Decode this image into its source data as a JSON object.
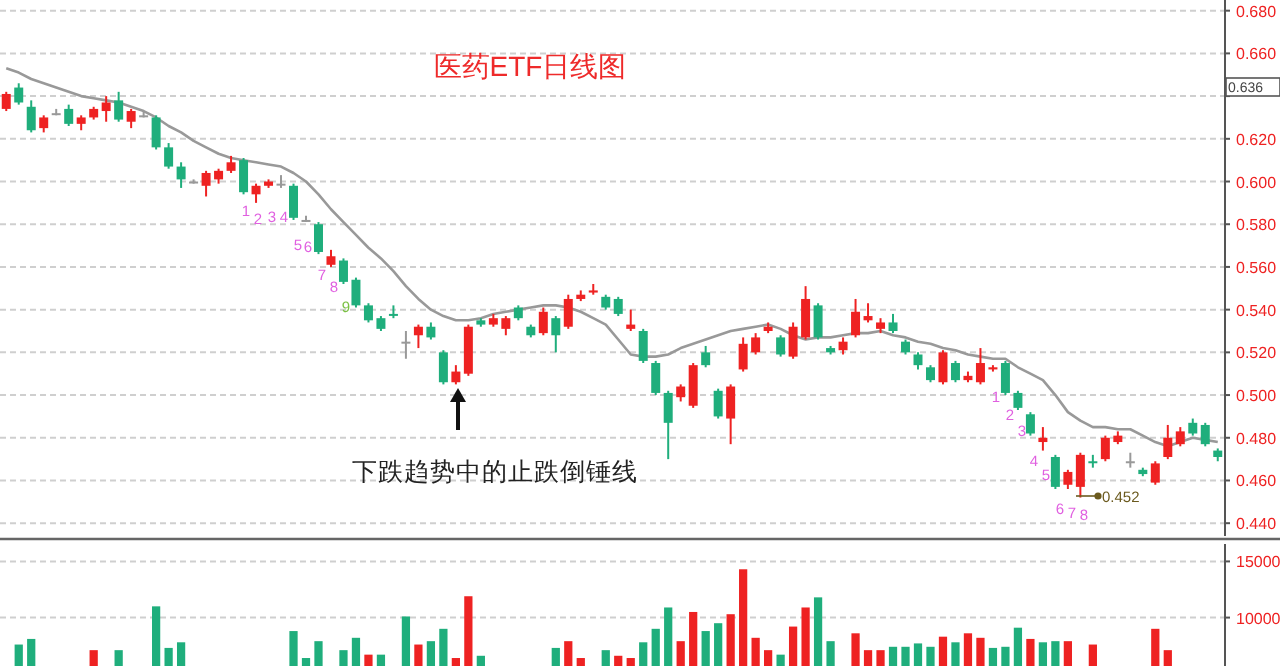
{
  "chart_data": [
    {
      "type": "candlestick",
      "title": "医药ETF日线图",
      "tick_labels": "y",
      "grid": "y",
      "categories": [
        null,
        null,
        null,
        null,
        null,
        null,
        null,
        null,
        null,
        null,
        null,
        null,
        null,
        null,
        null,
        null,
        null,
        null,
        null,
        null,
        null,
        null,
        null,
        null,
        null,
        null,
        null,
        null,
        null,
        null,
        null,
        null,
        null,
        null,
        null,
        null,
        null,
        null,
        null,
        null,
        null,
        null,
        null,
        null,
        null,
        null,
        null,
        null,
        null,
        null,
        null,
        null,
        null,
        null,
        null,
        null,
        null,
        null,
        null,
        null,
        null,
        null,
        null,
        null,
        null,
        null,
        null,
        null,
        null,
        null,
        null,
        null,
        null,
        null,
        null,
        null,
        null,
        null,
        null,
        null,
        null,
        null,
        null,
        null,
        null,
        null,
        null,
        null,
        null,
        null,
        null,
        null,
        null,
        null,
        null,
        null,
        null,
        null
      ],
      "ohlc": [
        [
          0.634,
          0.642,
          0.633,
          0.641
        ],
        [
          0.644,
          0.646,
          0.636,
          0.637
        ],
        [
          0.635,
          0.638,
          0.623,
          0.624
        ],
        [
          0.625,
          0.631,
          0.623,
          0.63
        ],
        [
          0.632,
          0.634,
          0.631,
          0.632
        ],
        [
          0.634,
          0.636,
          0.626,
          0.627
        ],
        [
          0.627,
          0.631,
          0.624,
          0.63
        ],
        [
          0.63,
          0.635,
          0.629,
          0.634
        ],
        [
          0.633,
          0.64,
          0.628,
          0.637
        ],
        [
          0.638,
          0.642,
          0.628,
          0.629
        ],
        [
          0.628,
          0.634,
          0.625,
          0.633
        ],
        [
          0.631,
          0.633,
          0.63,
          0.631
        ],
        [
          0.63,
          0.631,
          0.615,
          0.616
        ],
        [
          0.616,
          0.618,
          0.606,
          0.607
        ],
        [
          0.607,
          0.609,
          0.597,
          0.601
        ],
        [
          0.6,
          0.601,
          0.599,
          0.6
        ],
        [
          0.598,
          0.605,
          0.593,
          0.604
        ],
        [
          0.601,
          0.606,
          0.599,
          0.605
        ],
        [
          0.605,
          0.612,
          0.604,
          0.609
        ],
        [
          0.61,
          0.611,
          0.594,
          0.595
        ],
        [
          0.594,
          0.599,
          0.59,
          0.598
        ],
        [
          0.598,
          0.601,
          0.597,
          0.6
        ],
        [
          0.599,
          0.603,
          0.597,
          0.599
        ],
        [
          0.598,
          0.599,
          0.582,
          0.583
        ],
        [
          0.582,
          0.584,
          0.581,
          0.582
        ],
        [
          0.58,
          0.581,
          0.566,
          0.567
        ],
        [
          0.561,
          0.568,
          0.56,
          0.565
        ],
        [
          0.563,
          0.564,
          0.552,
          0.553
        ],
        [
          0.554,
          0.555,
          0.541,
          0.542
        ],
        [
          0.542,
          0.543,
          0.534,
          0.535
        ],
        [
          0.536,
          0.537,
          0.53,
          0.531
        ],
        [
          0.538,
          0.542,
          0.536,
          0.538
        ],
        [
          0.525,
          0.53,
          0.517,
          0.525
        ],
        [
          0.528,
          0.533,
          0.522,
          0.532
        ],
        [
          0.532,
          0.534,
          0.526,
          0.527
        ],
        [
          0.52,
          0.521,
          0.505,
          0.506
        ],
        [
          0.506,
          0.514,
          0.505,
          0.511
        ],
        [
          0.51,
          0.533,
          0.509,
          0.532
        ],
        [
          0.535,
          0.536,
          0.532,
          0.533
        ],
        [
          0.533,
          0.538,
          0.532,
          0.536
        ],
        [
          0.531,
          0.537,
          0.528,
          0.536
        ],
        [
          0.541,
          0.542,
          0.535,
          0.536
        ],
        [
          0.532,
          0.533,
          0.527,
          0.528
        ],
        [
          0.529,
          0.541,
          0.528,
          0.539
        ],
        [
          0.536,
          0.537,
          0.52,
          0.528
        ],
        [
          0.532,
          0.547,
          0.531,
          0.545
        ],
        [
          0.545,
          0.549,
          0.544,
          0.547
        ],
        [
          0.548,
          0.552,
          0.547,
          0.549
        ],
        [
          0.546,
          0.547,
          0.54,
          0.541
        ],
        [
          0.545,
          0.546,
          0.537,
          0.538
        ],
        [
          0.531,
          0.54,
          0.53,
          0.533
        ],
        [
          0.53,
          0.531,
          0.515,
          0.516
        ],
        [
          0.515,
          0.516,
          0.5,
          0.501
        ],
        [
          0.501,
          0.502,
          0.47,
          0.487
        ],
        [
          0.499,
          0.505,
          0.497,
          0.504
        ],
        [
          0.495,
          0.515,
          0.494,
          0.514
        ],
        [
          0.52,
          0.523,
          0.513,
          0.514
        ],
        [
          0.502,
          0.503,
          0.489,
          0.49
        ],
        [
          0.489,
          0.505,
          0.477,
          0.504
        ],
        [
          0.512,
          0.527,
          0.511,
          0.524
        ],
        [
          0.52,
          0.529,
          0.519,
          0.527
        ],
        [
          0.53,
          0.534,
          0.529,
          0.532
        ],
        [
          0.527,
          0.528,
          0.518,
          0.519
        ],
        [
          0.518,
          0.534,
          0.517,
          0.532
        ],
        [
          0.527,
          0.551,
          0.526,
          0.545
        ],
        [
          0.542,
          0.543,
          0.526,
          0.527
        ],
        [
          0.522,
          0.523,
          0.519,
          0.52
        ],
        [
          0.521,
          0.527,
          0.519,
          0.525
        ],
        [
          0.528,
          0.545,
          0.527,
          0.539
        ],
        [
          0.535,
          0.543,
          0.534,
          0.537
        ],
        [
          0.531,
          0.536,
          0.529,
          0.534
        ],
        [
          0.534,
          0.538,
          0.529,
          0.53
        ],
        [
          0.525,
          0.526,
          0.519,
          0.52
        ],
        [
          0.519,
          0.52,
          0.512,
          0.514
        ],
        [
          0.513,
          0.514,
          0.506,
          0.507
        ],
        [
          0.506,
          0.521,
          0.505,
          0.52
        ],
        [
          0.515,
          0.516,
          0.506,
          0.507
        ],
        [
          0.507,
          0.511,
          0.506,
          0.509
        ],
        [
          0.506,
          0.522,
          0.505,
          0.515
        ],
        [
          0.512,
          0.514,
          0.511,
          0.513
        ],
        [
          0.515,
          0.516,
          0.5,
          0.501
        ],
        [
          0.501,
          0.502,
          0.493,
          0.494
        ],
        [
          0.491,
          0.492,
          0.481,
          0.482
        ],
        [
          0.478,
          0.485,
          0.474,
          0.48
        ],
        [
          0.471,
          0.472,
          0.456,
          0.457
        ],
        [
          0.458,
          0.465,
          0.456,
          0.464
        ],
        [
          0.457,
          0.473,
          0.452,
          0.472
        ],
        [
          0.469,
          0.472,
          0.466,
          0.469
        ],
        [
          0.47,
          0.481,
          0.469,
          0.48
        ],
        [
          0.478,
          0.483,
          0.477,
          0.481
        ],
        [
          0.469,
          0.473,
          0.466,
          0.469
        ],
        [
          0.465,
          0.466,
          0.462,
          0.463
        ],
        [
          0.459,
          0.469,
          0.458,
          0.468
        ],
        [
          0.471,
          0.486,
          0.47,
          0.48
        ],
        [
          0.477,
          0.485,
          0.476,
          0.483
        ],
        [
          0.487,
          0.489,
          0.481,
          0.482
        ],
        [
          0.486,
          0.487,
          0.476,
          0.477
        ],
        [
          0.474,
          0.475,
          0.469,
          0.471
        ]
      ],
      "colors": [
        "#ee2222",
        "#1fae7c",
        "#1fae7c",
        "#ee2222",
        "#999999",
        "#1fae7c",
        "#ee2222",
        "#ee2222",
        "#ee2222",
        "#1fae7c",
        "#ee2222",
        "#999999",
        "#1fae7c",
        "#1fae7c",
        "#1fae7c",
        "#999999",
        "#ee2222",
        "#ee2222",
        "#ee2222",
        "#1fae7c",
        "#ee2222",
        "#ee2222",
        "#999999",
        "#1fae7c",
        "#999999",
        "#1fae7c",
        "#ee2222",
        "#1fae7c",
        "#1fae7c",
        "#1fae7c",
        "#1fae7c",
        "#1fae7c",
        "#999999",
        "#ee2222",
        "#1fae7c",
        "#1fae7c",
        "#ee2222",
        "#ee2222",
        "#1fae7c",
        "#ee2222",
        "#ee2222",
        "#1fae7c",
        "#1fae7c",
        "#ee2222",
        "#1fae7c",
        "#ee2222",
        "#ee2222",
        "#ee2222",
        "#1fae7c",
        "#1fae7c",
        "#ee2222",
        "#1fae7c",
        "#1fae7c",
        "#1fae7c",
        "#ee2222",
        "#ee2222",
        "#1fae7c",
        "#1fae7c",
        "#ee2222",
        "#ee2222",
        "#ee2222",
        "#ee2222",
        "#1fae7c",
        "#ee2222",
        "#ee2222",
        "#1fae7c",
        "#1fae7c",
        "#ee2222",
        "#ee2222",
        "#ee2222",
        "#ee2222",
        "#1fae7c",
        "#1fae7c",
        "#1fae7c",
        "#1fae7c",
        "#ee2222",
        "#1fae7c",
        "#ee2222",
        "#ee2222",
        "#ee2222",
        "#1fae7c",
        "#1fae7c",
        "#1fae7c",
        "#ee2222",
        "#1fae7c",
        "#ee2222",
        "#ee2222",
        "#1fae7c",
        "#ee2222",
        "#ee2222",
        "#999999",
        "#1fae7c",
        "#ee2222",
        "#ee2222",
        "#ee2222",
        "#1fae7c",
        "#1fae7c",
        "#1fae7c"
      ],
      "series": [
        {
          "type": "line",
          "color": "#999999",
          "values": [
            0.653,
            0.651,
            0.648,
            0.646,
            0.644,
            0.642,
            0.64,
            0.639,
            0.638,
            0.637,
            0.635,
            0.633,
            0.63,
            0.626,
            0.623,
            0.619,
            0.616,
            0.613,
            0.611,
            0.61,
            0.609,
            0.608,
            0.607,
            0.604,
            0.6,
            0.594,
            0.587,
            0.581,
            0.575,
            0.569,
            0.564,
            0.558,
            0.551,
            0.545,
            0.54,
            0.537,
            0.535,
            0.535,
            0.536,
            0.538,
            0.539,
            0.54,
            0.541,
            0.542,
            0.542,
            0.541,
            0.539,
            0.536,
            0.533,
            0.526,
            0.519,
            0.518,
            0.518,
            0.519,
            0.522,
            0.524,
            0.526,
            0.528,
            0.53,
            0.531,
            0.532,
            0.533,
            0.531,
            0.528,
            0.526,
            0.527,
            0.527,
            0.528,
            0.529,
            0.529,
            0.53,
            0.528,
            0.527,
            0.525,
            0.524,
            0.522,
            0.521,
            0.519,
            0.518,
            0.517,
            0.517,
            0.513,
            0.51,
            0.507,
            0.5,
            0.492,
            0.488,
            0.485,
            0.485,
            0.484,
            0.484,
            0.481,
            0.478,
            0.476,
            0.478,
            0.48,
            0.479,
            0.478
          ]
        }
      ],
      "ylim": [
        0.434,
        0.685
      ],
      "yticks": [
        {
          "value": 0.44,
          "label": "0.440"
        },
        {
          "value": 0.46,
          "label": "0.460"
        },
        {
          "value": 0.48,
          "label": "0.480"
        },
        {
          "value": 0.5,
          "label": "0.500"
        },
        {
          "value": 0.52,
          "label": "0.520"
        },
        {
          "value": 0.54,
          "label": "0.540"
        },
        {
          "value": 0.56,
          "label": "0.560"
        },
        {
          "value": 0.58,
          "label": "0.580"
        },
        {
          "value": 0.6,
          "label": "0.600"
        },
        {
          "value": 0.62,
          "label": "0.620"
        },
        {
          "value": 0.64,
          "label": null
        },
        {
          "value": 0.66,
          "label": "0.660"
        },
        {
          "value": 0.68,
          "label": "0.680"
        }
      ],
      "annotations": [
        "0.636",
        "下跌趋势中的止跌倒锤线",
        "1",
        "2",
        "3",
        "4",
        "5",
        "6",
        "7",
        "8",
        "9",
        "1",
        "2",
        "3",
        "4",
        "5",
        "6",
        "7",
        "8",
        "0.452"
      ]
    },
    {
      "type": "bar",
      "tick_labels": "y",
      "grid": "y",
      "categories": [
        null,
        null,
        null,
        null,
        null,
        null,
        null,
        null,
        null,
        null,
        null,
        null,
        null,
        null,
        null,
        null,
        null,
        null,
        null,
        null,
        null,
        null,
        null,
        null,
        null,
        null,
        null,
        null,
        null,
        null,
        null,
        null,
        null,
        null,
        null,
        null,
        null,
        null,
        null,
        null,
        null,
        null,
        null,
        null,
        null,
        null,
        null,
        null,
        null,
        null,
        null,
        null,
        null,
        null,
        null,
        null,
        null,
        null,
        null,
        null,
        null,
        null,
        null,
        null,
        null,
        null,
        null,
        null,
        null,
        null,
        null,
        null,
        null,
        null,
        null,
        null,
        null,
        null,
        null,
        null,
        null,
        null,
        null,
        null,
        null,
        null,
        null,
        null,
        null,
        null,
        null,
        null,
        null,
        null,
        null,
        null,
        null,
        null
      ],
      "values": [
        null,
        7600,
        8100,
        null,
        null,
        null,
        null,
        7100,
        null,
        7100,
        null,
        null,
        11000,
        7300,
        7800,
        null,
        null,
        null,
        null,
        null,
        null,
        null,
        null,
        8800,
        6400,
        7900,
        null,
        7100,
        8200,
        6700,
        6700,
        null,
        10100,
        7600,
        7900,
        9000,
        6400,
        11900,
        6600,
        null,
        null,
        null,
        null,
        null,
        7300,
        7900,
        6400,
        null,
        7100,
        6600,
        6400,
        7800,
        9000,
        10900,
        7900,
        10500,
        8800,
        9500,
        10300,
        14300,
        8200,
        7100,
        6700,
        9200,
        10900,
        11800,
        7900,
        null,
        8600,
        7100,
        7100,
        7400,
        7400,
        7700,
        7400,
        8300,
        7800,
        8600,
        8200,
        7300,
        7400,
        9100,
        8100,
        7800,
        7900,
        7900,
        null,
        7600,
        null,
        null,
        null,
        null,
        9000,
        7100,
        null,
        null,
        null,
        null
      ],
      "colors": [
        null,
        "#1fae7c",
        "#1fae7c",
        null,
        null,
        null,
        null,
        "#ee2222",
        null,
        "#1fae7c",
        null,
        null,
        "#1fae7c",
        "#1fae7c",
        "#1fae7c",
        null,
        null,
        null,
        null,
        null,
        null,
        null,
        null,
        "#1fae7c",
        "#1fae7c",
        "#1fae7c",
        null,
        "#1fae7c",
        "#1fae7c",
        "#ee2222",
        "#1fae7c",
        null,
        "#1fae7c",
        "#ee2222",
        "#1fae7c",
        "#1fae7c",
        "#ee2222",
        "#ee2222",
        "#1fae7c",
        null,
        null,
        null,
        null,
        null,
        "#1fae7c",
        "#ee2222",
        "#ee2222",
        null,
        "#1fae7c",
        "#ee2222",
        "#ee2222",
        "#1fae7c",
        "#1fae7c",
        "#1fae7c",
        "#ee2222",
        "#ee2222",
        "#1fae7c",
        "#1fae7c",
        "#ee2222",
        "#ee2222",
        "#ee2222",
        "#ee2222",
        "#1fae7c",
        "#ee2222",
        "#ee2222",
        "#1fae7c",
        "#1fae7c",
        null,
        "#ee2222",
        "#ee2222",
        "#ee2222",
        "#1fae7c",
        "#1fae7c",
        "#1fae7c",
        "#1fae7c",
        "#ee2222",
        "#1fae7c",
        "#ee2222",
        "#ee2222",
        "#1fae7c",
        "#1fae7c",
        "#1fae7c",
        "#ee2222",
        "#1fae7c",
        "#1fae7c",
        "#ee2222",
        null,
        "#ee2222",
        null,
        null,
        null,
        null,
        "#ee2222",
        "#ee2222",
        null,
        null,
        null,
        null
      ],
      "ylim": [
        5690,
        16550
      ],
      "yticks": [
        10000,
        15000
      ]
    }
  ]
}
